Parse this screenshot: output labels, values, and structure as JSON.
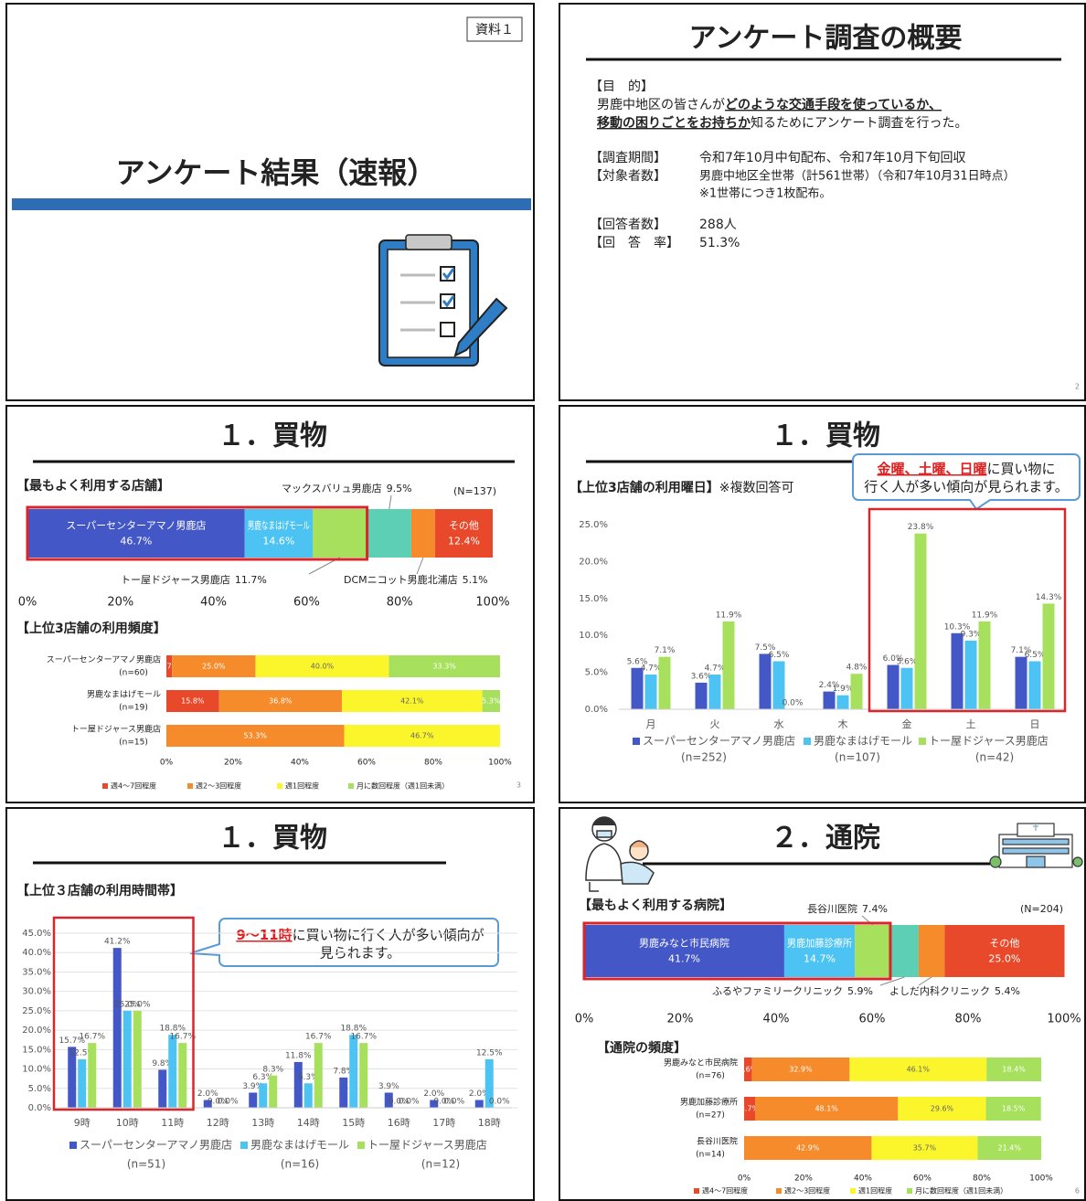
{
  "slides": [
    {
      "label": "資料１",
      "title": "アンケート結果（速報）"
    },
    {
      "title": "アンケート調査の概要",
      "purpose_heading": "【目　的】",
      "purpose": [
        [
          "男鹿中地区の皆さんが",
          "どのような交通手段を使っているか、"
        ],
        [
          "移動の困りごとをお持ちか",
          "知るためにアンケート調査を行った。"
        ]
      ],
      "fields": [
        {
          "label": "【調査期間】",
          "lines": [
            "令和7年10月中旬配布、令和7年10月下旬回収"
          ]
        },
        {
          "label": "【対象者数】",
          "lines": [
            "男鹿中地区全世帯（計561世帯）（令和7年10月31日時点）",
            "※1世帯につき1枚配布。"
          ]
        },
        {
          "label": "【回答者数】",
          "lines": [
            "288人"
          ]
        },
        {
          "label": "【回　答　率】",
          "lines": [
            "51.3%"
          ]
        }
      ],
      "page": "2"
    },
    {
      "title": "１．買物",
      "page": "3",
      "chart_data": [
        {
          "type": "share",
          "title": "【最もよく利用する店舗】",
          "note": "(N=137)",
          "xlim": [
            0,
            100
          ],
          "xticks": [
            {
              "value": 0,
              "label": "0%"
            },
            {
              "value": 20,
              "label": "20%"
            },
            {
              "value": 40,
              "label": "40%"
            },
            {
              "value": 60,
              "label": "60%"
            },
            {
              "value": 80,
              "label": "80%"
            },
            {
              "value": 100,
              "label": "100%"
            }
          ],
          "series": [
            {
              "name": "スーパーセンターアマノ男鹿店",
              "color": "#4457c6",
              "values": [
                46.7
              ],
              "value_labels": [
                "46.7%"
              ]
            },
            {
              "name": "男鹿なまはげモール",
              "color": "#4cc3f2",
              "values": [
                14.6
              ],
              "value_labels": [
                "14.6%"
              ]
            },
            {
              "name": "トー屋ドジャース男鹿店",
              "color": "#a6e05c",
              "values": [
                11.7
              ],
              "value_labels": [
                "11.7%"
              ]
            },
            {
              "name": "マックスバリュ男鹿店",
              "color": "#5ccfb4",
              "values": [
                9.5
              ],
              "value_labels": [
                "9.5%"
              ]
            },
            {
              "name": "DCMニコット男鹿北浦店",
              "color": "#f68b2c",
              "values": [
                5.1
              ],
              "value_labels": [
                "5.1%"
              ]
            },
            {
              "name": "その他",
              "color": "#e8492b",
              "values": [
                12.4
              ],
              "value_labels": [
                "12.4%"
              ]
            }
          ]
        },
        {
          "type": "stacked",
          "title": "【上位3店舗の利用頻度】",
          "categories": [
            "スーパーセンターアマノ男鹿店",
            "男鹿なまはげモール",
            "トー屋ドジャース男鹿店"
          ],
          "category_notes": [
            "(n=60)",
            "(n=19)",
            "(n=15)"
          ],
          "xlim": [
            0,
            100
          ],
          "xticks": [
            {
              "value": 0,
              "label": "0%"
            },
            {
              "value": 20,
              "label": "20%"
            },
            {
              "value": 40,
              "label": "40%"
            },
            {
              "value": 60,
              "label": "60%"
            },
            {
              "value": 80,
              "label": "80%"
            },
            {
              "value": 100,
              "label": "100%"
            }
          ],
          "series": [
            {
              "name": "週4～7回程度",
              "color": "#e8492b",
              "values": [
                1.7,
                15.8,
                0
              ],
              "value_labels": [
                "1.7%",
                "15.8%",
                null
              ]
            },
            {
              "name": "週2～3回程度",
              "color": "#f68b2c",
              "values": [
                25.0,
                36.8,
                53.3
              ],
              "value_labels": [
                "25.0%",
                "36.8%",
                "53.3%"
              ]
            },
            {
              "name": "週1回程度",
              "color": "#fbf52b",
              "values": [
                40.0,
                42.1,
                46.7
              ],
              "value_labels": [
                "40.0%",
                "42.1%",
                "46.7%"
              ]
            },
            {
              "name": "月に数回程度（週1回未満）",
              "color": "#a6e05c",
              "values": [
                33.3,
                5.3,
                0
              ],
              "value_labels": [
                "33.3%",
                "5.3%",
                null
              ]
            }
          ]
        }
      ]
    },
    {
      "title": "１．買物",
      "callout": {
        "highlight": "金曜、土曜、日曜",
        "lines": [
          "に買い物に",
          "行く人が多い傾向が見られます。"
        ]
      },
      "chart_data": [
        {
          "type": "bar",
          "title": "【上位3店舗の利用曜日】",
          "note": "※複数回答可",
          "grid": false,
          "categories": [
            "月",
            "火",
            "水",
            "木",
            "金",
            "土",
            "日"
          ],
          "ylim": [
            0,
            25
          ],
          "yticks": [
            {
              "value": 0,
              "label": "0.0%"
            },
            {
              "value": 5,
              "label": "5.0%"
            },
            {
              "value": 10,
              "label": "10.0%"
            },
            {
              "value": 15,
              "label": "15.0%"
            },
            {
              "value": 20,
              "label": "20.0%"
            },
            {
              "value": 25,
              "label": "25.0%"
            }
          ],
          "series": [
            {
              "name": "スーパーセンターアマノ男鹿店",
              "note": "(n=252)",
              "color": "#4457c6",
              "values": [
                5.6,
                3.6,
                7.5,
                2.4,
                6.0,
                10.3,
                7.1
              ],
              "value_labels": [
                "5.6%",
                "3.6%",
                "7.5%",
                "2.4%",
                "6.0%",
                "10.3%",
                "7.1%"
              ]
            },
            {
              "name": "男鹿なまはげモール",
              "note": "(n=107)",
              "color": "#4cc3f2",
              "values": [
                4.7,
                4.7,
                6.5,
                1.9,
                5.6,
                9.3,
                6.5
              ],
              "value_labels": [
                "4.7%",
                "4.7%",
                "6.5%",
                "1.9%",
                "5.6%",
                "9.3%",
                "6.5%"
              ]
            },
            {
              "name": "トー屋ドジャース男鹿店",
              "note": "(n=42)",
              "color": "#a6e05c",
              "values": [
                7.1,
                11.9,
                0.0,
                4.8,
                23.8,
                11.9,
                14.3
              ],
              "value_labels": [
                "7.1%",
                "11.9%",
                "0.0%",
                "4.8%",
                "23.8%",
                "11.9%",
                "14.3%"
              ]
            }
          ]
        }
      ]
    },
    {
      "title": "１．買物",
      "callout": {
        "highlight": "9～11時",
        "lines": [
          "に買い物に行く人が多い傾向が",
          "見られます。"
        ]
      },
      "chart_data": [
        {
          "type": "bar",
          "title": "【上位３店舗の利用時間帯】",
          "grid": true,
          "categories": [
            "9時",
            "10時",
            "11時",
            "12時",
            "13時",
            "14時",
            "15時",
            "16時",
            "17時",
            "18時"
          ],
          "ylim": [
            0,
            45
          ],
          "yticks": [
            {
              "value": 0,
              "label": "0.0%"
            },
            {
              "value": 5,
              "label": "5.0%"
            },
            {
              "value": 10,
              "label": "10.0%"
            },
            {
              "value": 15,
              "label": "15.0%"
            },
            {
              "value": 20,
              "label": "20.0%"
            },
            {
              "value": 25,
              "label": "25.0%"
            },
            {
              "value": 30,
              "label": "30.0%"
            },
            {
              "value": 35,
              "label": "35.0%"
            },
            {
              "value": 40,
              "label": "40.0%"
            },
            {
              "value": 45,
              "label": "45.0%"
            }
          ],
          "series": [
            {
              "name": "スーパーセンターアマノ男鹿店",
              "note": "(n=51)",
              "color": "#4457c6",
              "values": [
                15.7,
                41.2,
                9.8,
                2.0,
                3.9,
                11.8,
                7.8,
                3.9,
                2.0,
                2.0
              ],
              "value_labels": [
                "15.7%",
                "41.2%",
                "9.8%",
                "2.0%",
                "3.9%",
                "11.8%",
                "7.8%",
                "3.9%",
                "2.0%",
                "2.0%"
              ]
            },
            {
              "name": "男鹿なまはげモール",
              "note": "(n=16)",
              "color": "#4cc3f2",
              "values": [
                12.5,
                25.0,
                18.8,
                0.0,
                6.3,
                6.3,
                18.8,
                0.0,
                0.0,
                12.5
              ],
              "value_labels": [
                "12.5%",
                "25.0%",
                "18.8%",
                "0.0%",
                "6.3%",
                "6.3%",
                "18.8%",
                "0.0%",
                "0.0%",
                "12.5%"
              ]
            },
            {
              "name": "トー屋ドジャース男鹿店",
              "note": "(n=12)",
              "color": "#a6e05c",
              "values": [
                16.7,
                25.0,
                16.7,
                0.0,
                8.3,
                16.7,
                16.7,
                0.0,
                0.0,
                0.0
              ],
              "value_labels": [
                "16.7%",
                "25.0%",
                "16.7%",
                "0.0%",
                "8.3%",
                "16.7%",
                "16.7%",
                "0.0%",
                "0.0%",
                "0.0%"
              ]
            }
          ]
        }
      ]
    },
    {
      "title": "２．通院",
      "page": "6",
      "chart_data": [
        {
          "type": "share",
          "title": "【最もよく利用する病院】",
          "note": "(N=204)",
          "xlim": [
            0,
            100
          ],
          "xticks": [
            {
              "value": 0,
              "label": "0%"
            },
            {
              "value": 20,
              "label": "20%"
            },
            {
              "value": 40,
              "label": "40%"
            },
            {
              "value": 60,
              "label": "60%"
            },
            {
              "value": 80,
              "label": "80%"
            },
            {
              "value": 100,
              "label": "100%"
            }
          ],
          "series": [
            {
              "name": "男鹿みなと市民病院",
              "color": "#4457c6",
              "values": [
                41.7
              ],
              "value_labels": [
                "41.7%"
              ]
            },
            {
              "name": "男鹿加藤診療所",
              "color": "#4cc3f2",
              "values": [
                14.7
              ],
              "value_labels": [
                "14.7%"
              ]
            },
            {
              "name": "長谷川医院",
              "color": "#a6e05c",
              "values": [
                7.4
              ],
              "value_labels": [
                "7.4%"
              ]
            },
            {
              "name": "ふるやファミリークリニック",
              "color": "#5ccfb4",
              "values": [
                5.9
              ],
              "value_labels": [
                "5.9%"
              ]
            },
            {
              "name": "よしだ内科クリニック",
              "color": "#f68b2c",
              "values": [
                5.4
              ],
              "value_labels": [
                "5.4%"
              ]
            },
            {
              "name": "その他",
              "color": "#e8492b",
              "values": [
                25.0
              ],
              "value_labels": [
                "25.0%"
              ]
            }
          ]
        },
        {
          "type": "stacked",
          "title": "【通院の頻度】",
          "categories": [
            "男鹿みなと市民病院",
            "男鹿加藤診療所",
            "長谷川医院"
          ],
          "category_notes": [
            "(n=76)",
            "(n=27)",
            "(n=14)"
          ],
          "xlim": [
            0,
            100
          ],
          "xticks": [
            {
              "value": 0,
              "label": "0%"
            },
            {
              "value": 20,
              "label": "20%"
            },
            {
              "value": 40,
              "label": "40%"
            },
            {
              "value": 60,
              "label": "60%"
            },
            {
              "value": 80,
              "label": "80%"
            },
            {
              "value": 100,
              "label": "100%"
            }
          ],
          "series": [
            {
              "name": "週4～7回程度",
              "color": "#e8492b",
              "values": [
                2.6,
                3.7,
                0
              ],
              "value_labels": [
                "2.6%",
                "3.7%",
                null
              ]
            },
            {
              "name": "週2～3回程度",
              "color": "#f68b2c",
              "values": [
                32.9,
                48.1,
                42.9
              ],
              "value_labels": [
                "32.9%",
                "48.1%",
                "42.9%"
              ]
            },
            {
              "name": "週1回程度",
              "color": "#fbf52b",
              "values": [
                46.1,
                29.6,
                35.7
              ],
              "value_labels": [
                "46.1%",
                "29.6%",
                "35.7%"
              ]
            },
            {
              "name": "月に数回程度（週1回未満）",
              "color": "#a6e05c",
              "values": [
                18.4,
                18.5,
                21.4
              ],
              "value_labels": [
                "18.4%",
                "18.5%",
                "21.4%"
              ]
            }
          ]
        }
      ]
    }
  ]
}
